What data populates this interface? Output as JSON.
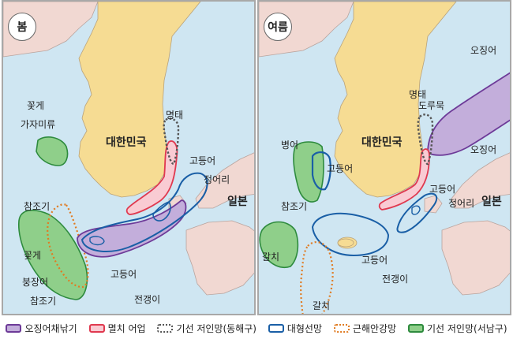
{
  "colors": {
    "sea": "#cfe6f2",
    "land_korea": "#f6dc93",
    "land_other": "#f1d8d2",
    "squid": "#c3aedb",
    "squid_border": "#6d3a98",
    "anchovy": "#f9cbd3",
    "anchovy_border": "#e0394f",
    "east_trawl": "#555555",
    "large_purse": "#1a5fa6",
    "coastal_net": "#e07b22",
    "sw_trawl": "#8fcf8a",
    "sw_trawl_border": "#2e8b3e"
  },
  "spring": {
    "season": "봄",
    "country_korea": "대한민국",
    "country_japan": "일본",
    "labels": {
      "kkotge_1": "꽃게",
      "gajami": "가자미류",
      "myeongtae": "명태",
      "godeungeo_1": "고등어",
      "jeongeori": "정어리",
      "chamjogi_1": "참조기",
      "kkotge_2": "꽃게",
      "bungjangeo": "붕장어",
      "chamjogi_2": "참조기",
      "godeungeo_2": "고등어",
      "jeongaengi": "전갱이"
    }
  },
  "summer": {
    "season": "여름",
    "country_korea": "대한민국",
    "country_japan": "일본",
    "labels": {
      "ojingeo_1": "오징어",
      "myeongtae": "명태",
      "dorumuk": "도루묵",
      "ojingeo_2": "오징어",
      "byeongeo": "병어",
      "godeungeo_1": "고등어",
      "godeungeo_2": "고등어",
      "jeongeori": "정어리",
      "chamjogi": "참조기",
      "galchi_1": "갈치",
      "godeungeo_3": "고등어",
      "jeongaengi": "전갱이",
      "galchi_2": "갈치"
    }
  },
  "legend": [
    {
      "key": "squid",
      "label": "오징어채낚기"
    },
    {
      "key": "anchovy",
      "label": "멸치 어업"
    },
    {
      "key": "east_trawl",
      "label": "기선 저인망(동해구)"
    },
    {
      "key": "large_purse",
      "label": "대형선망"
    },
    {
      "key": "coastal_net",
      "label": "근해안강망"
    },
    {
      "key": "sw_trawl",
      "label": "기선 저인망(서남구)"
    }
  ]
}
